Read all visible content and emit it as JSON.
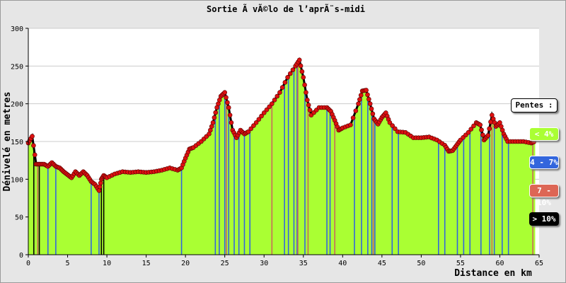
{
  "chart_data": {
    "type": "area",
    "title": "Sortie Ã  vÃ©lo de l’aprÃ¨s-midi",
    "xlabel": "Distance en km",
    "ylabel": "Dénivelé en metres",
    "xlim": [
      0,
      65
    ],
    "ylim": [
      0,
      300
    ],
    "x_ticks": [
      0,
      5,
      10,
      15,
      20,
      25,
      30,
      35,
      40,
      45,
      50,
      55,
      60,
      65
    ],
    "y_ticks": [
      0,
      50,
      100,
      150,
      200,
      250,
      300
    ],
    "grid": true,
    "fill_color": "#aaff33",
    "line_color": "#000000",
    "marker_color": "#dd1111",
    "profile": {
      "x": [
        0,
        0.5,
        1,
        1.5,
        2,
        2.5,
        3,
        3.5,
        4,
        4.5,
        5,
        5.5,
        6,
        6.5,
        7,
        7.5,
        8,
        8.5,
        9,
        9.3,
        9.6,
        10,
        11,
        12,
        13,
        14,
        15,
        16,
        17,
        18,
        19,
        19.5,
        20,
        20.5,
        21,
        22,
        23,
        23.5,
        24,
        24.5,
        25,
        25.5,
        26,
        26.5,
        27,
        27.5,
        28,
        29,
        30,
        31,
        32,
        33,
        34,
        34.5,
        35,
        35.5,
        36,
        37,
        38,
        38.5,
        39,
        39.5,
        40,
        41,
        42,
        42.5,
        43,
        43.5,
        44,
        44.5,
        45,
        45.5,
        46,
        47,
        48,
        49,
        50,
        51,
        52,
        53,
        53.5,
        54,
        54.5,
        55,
        56,
        57,
        57.5,
        58,
        58.5,
        59,
        59.5,
        60,
        60.5,
        61,
        62,
        63,
        64,
        64.5
      ],
      "y": [
        148,
        157,
        120,
        120,
        120,
        117,
        122,
        117,
        115,
        110,
        106,
        102,
        110,
        105,
        110,
        105,
        97,
        93,
        85,
        100,
        105,
        102,
        107,
        110,
        109,
        110,
        109,
        110,
        112,
        115,
        112,
        115,
        128,
        140,
        142,
        150,
        160,
        175,
        195,
        210,
        215,
        195,
        165,
        155,
        165,
        160,
        163,
        175,
        188,
        200,
        215,
        235,
        250,
        258,
        235,
        205,
        185,
        195,
        195,
        190,
        178,
        165,
        168,
        172,
        200,
        217,
        218,
        200,
        180,
        173,
        182,
        188,
        175,
        163,
        162,
        155,
        155,
        156,
        152,
        145,
        137,
        138,
        145,
        152,
        162,
        175,
        172,
        152,
        158,
        185,
        170,
        175,
        160,
        150,
        150,
        150,
        148,
        150
      ]
    },
    "slope_bars": {
      "blue": [
        2.5,
        3.5,
        8,
        9,
        19.5,
        23.8,
        24.3,
        25,
        25.5,
        26.2,
        26.8,
        27.5,
        28.2,
        32.6,
        33.1,
        33.8,
        34.2,
        35.2,
        38,
        38.4,
        41.5,
        42.4,
        43.2,
        43.7,
        44.1,
        46.3,
        47.1,
        52.2,
        53,
        54.6,
        55.4,
        56.2,
        57.6,
        58.7,
        59.3,
        60.3,
        61.1
      ],
      "red": [
        1.2,
        25.2,
        31,
        34.3,
        35.6,
        39,
        43.9,
        59,
        64.2
      ],
      "black": [
        0.7,
        1.4,
        9.3,
        9.6
      ]
    },
    "legend": {
      "title": "Pentes :",
      "items": [
        {
          "label": "< 4%",
          "color": "#aaff33"
        },
        {
          "label": "4 - 7%",
          "color": "#3366dd"
        },
        {
          "label": "7 - 10%",
          "color": "#dd6655"
        },
        {
          "label": "> 10%",
          "color": "#000000"
        }
      ]
    }
  }
}
